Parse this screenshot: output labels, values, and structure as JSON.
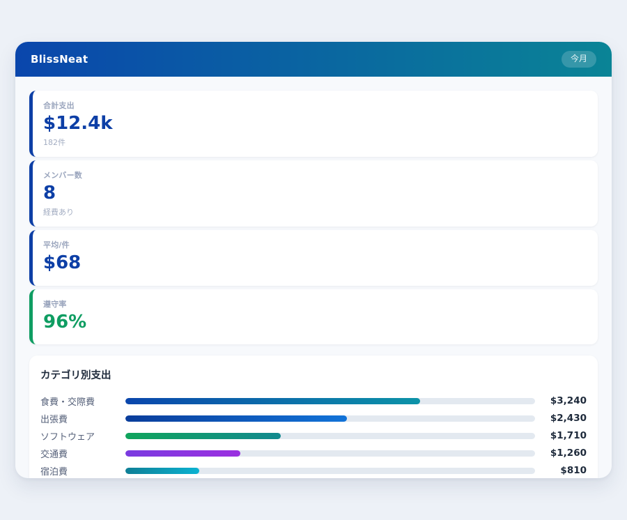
{
  "app": {
    "title": "BlissNeat",
    "period_badge": "今月"
  },
  "theme": {
    "header_gradient_start": "#0a46ac",
    "header_gradient_end": "#0a8496",
    "accent_blue": "#0d3fa6",
    "accent_green": "#0f9d62",
    "track_color": "#e3e9f0",
    "page_background": "#edf1f7"
  },
  "stats": [
    {
      "label": "合計支出",
      "value": "$12.4k",
      "sub": "182件",
      "accent": "#0d3fa6"
    },
    {
      "label": "メンバー数",
      "value": "8",
      "sub": "経費あり",
      "accent": "#0d3fa6"
    },
    {
      "label": "平均/件",
      "value": "$68",
      "sub": "",
      "accent": "#0d3fa6"
    },
    {
      "label": "遵守率",
      "value": "96%",
      "sub": "",
      "accent": "#0f9d62"
    }
  ],
  "chart_data": {
    "type": "bar",
    "orientation": "horizontal",
    "title": "カテゴリ別支出",
    "categories": [
      "食費・交際費",
      "出張費",
      "ソフトウェア",
      "交通費",
      "宿泊費"
    ],
    "values": [
      3240,
      2430,
      1710,
      1260,
      810
    ],
    "value_labels": [
      "$3,240",
      "$2,430",
      "$1,710",
      "$1,260",
      "$810"
    ],
    "xlabel": "",
    "ylabel": "",
    "xlim": [
      0,
      4500
    ],
    "grid": false,
    "legend": false,
    "bar_gradients": [
      [
        "#0a46ac",
        "#0d93a8"
      ],
      [
        "#0a3d9b",
        "#1273d8"
      ],
      [
        "#10a45c",
        "#12898f"
      ],
      [
        "#7a3be0",
        "#9b30e0"
      ],
      [
        "#0e7f96",
        "#0cb2d1"
      ]
    ]
  }
}
